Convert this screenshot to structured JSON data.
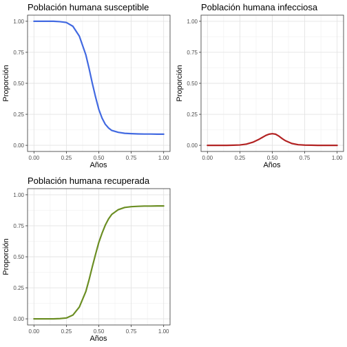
{
  "chart_data": [
    {
      "type": "line",
      "title": "Población humana susceptible",
      "xlabel": "Años",
      "ylabel": "Proporción",
      "xlim": [
        0,
        1
      ],
      "ylim": [
        0,
        1
      ],
      "x_ticks": [
        "0.00",
        "0.25",
        "0.50",
        "0.75",
        "1.00"
      ],
      "y_ticks": [
        "0.00",
        "0.25",
        "0.50",
        "0.75",
        "1.00"
      ],
      "grid": true,
      "line_color": "#4169E1",
      "series": [
        {
          "x": [
            0.0,
            0.05,
            0.1,
            0.15,
            0.2,
            0.25,
            0.3,
            0.35,
            0.4,
            0.425,
            0.45,
            0.475,
            0.5,
            0.525,
            0.55,
            0.575,
            0.6,
            0.65,
            0.7,
            0.75,
            0.8,
            0.85,
            0.9,
            0.95,
            1.0
          ],
          "y": [
            1.0,
            1.0,
            1.0,
            1.0,
            0.997,
            0.99,
            0.96,
            0.88,
            0.73,
            0.62,
            0.5,
            0.39,
            0.29,
            0.22,
            0.17,
            0.14,
            0.12,
            0.105,
            0.097,
            0.094,
            0.092,
            0.091,
            0.091,
            0.09,
            0.09
          ]
        }
      ]
    },
    {
      "type": "line",
      "title": "Población humana infecciosa",
      "xlabel": "Años",
      "ylabel": "Proporción",
      "xlim": [
        0,
        1
      ],
      "ylim": [
        0,
        1
      ],
      "x_ticks": [
        "0.00",
        "0.25",
        "0.50",
        "0.75",
        "1.00"
      ],
      "y_ticks": [
        "0.00",
        "0.25",
        "0.50",
        "0.75",
        "1.00"
      ],
      "grid": true,
      "line_color": "#B22222",
      "series": [
        {
          "x": [
            0.0,
            0.05,
            0.1,
            0.15,
            0.2,
            0.25,
            0.3,
            0.35,
            0.4,
            0.425,
            0.45,
            0.475,
            0.5,
            0.525,
            0.55,
            0.575,
            0.6,
            0.65,
            0.7,
            0.75,
            0.8,
            0.85,
            0.9,
            0.95,
            1.0
          ],
          "y": [
            0.0,
            0.0,
            0.0,
            0.0,
            0.001,
            0.003,
            0.01,
            0.025,
            0.05,
            0.065,
            0.08,
            0.09,
            0.094,
            0.09,
            0.075,
            0.055,
            0.038,
            0.015,
            0.005,
            0.002,
            0.001,
            0.0,
            0.0,
            0.0,
            0.0
          ]
        }
      ]
    },
    {
      "type": "line",
      "title": "Población humana recuperada",
      "xlabel": "Años",
      "ylabel": "Proporción",
      "xlim": [
        0,
        1
      ],
      "ylim": [
        0,
        1
      ],
      "x_ticks": [
        "0.00",
        "0.25",
        "0.50",
        "0.75",
        "1.00"
      ],
      "y_ticks": [
        "0.00",
        "0.25",
        "0.50",
        "0.75",
        "1.00"
      ],
      "grid": true,
      "line_color": "#6B8E23",
      "series": [
        {
          "x": [
            0.0,
            0.05,
            0.1,
            0.15,
            0.2,
            0.25,
            0.3,
            0.35,
            0.4,
            0.425,
            0.45,
            0.475,
            0.5,
            0.525,
            0.55,
            0.575,
            0.6,
            0.65,
            0.7,
            0.75,
            0.8,
            0.85,
            0.9,
            0.95,
            1.0
          ],
          "y": [
            0.0,
            0.0,
            0.0,
            0.0,
            0.002,
            0.007,
            0.03,
            0.095,
            0.22,
            0.315,
            0.42,
            0.52,
            0.616,
            0.69,
            0.755,
            0.805,
            0.842,
            0.88,
            0.898,
            0.904,
            0.907,
            0.909,
            0.909,
            0.91,
            0.91
          ]
        }
      ]
    }
  ]
}
